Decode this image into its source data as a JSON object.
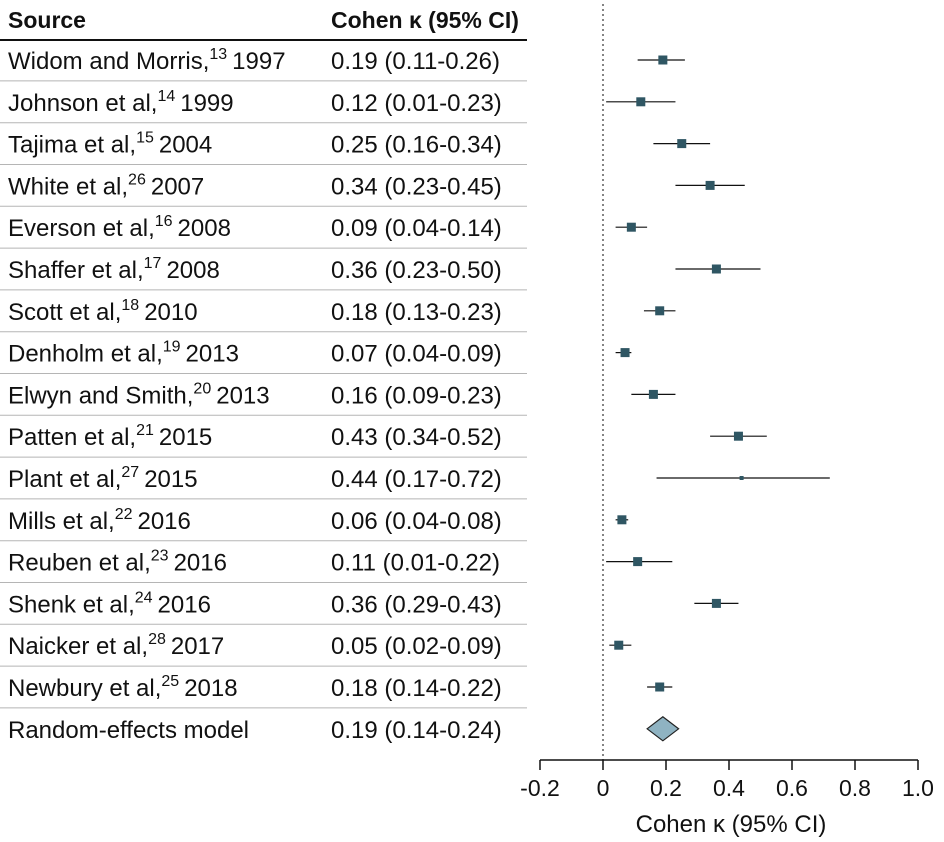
{
  "chart_data": {
    "type": "forest",
    "headers": {
      "source": "Source",
      "estimate": "Cohen κ (95% CI)"
    },
    "xlabel": "Cohen κ (95% CI)",
    "xlim": [
      -0.2,
      1.0
    ],
    "xticks": [
      "-0.2",
      "0",
      "0.2",
      "0.4",
      "0.6",
      "0.8",
      "1.0"
    ],
    "xtick_values": [
      -0.2,
      0,
      0.2,
      0.4,
      0.6,
      0.8,
      1.0
    ],
    "reference_line": 0,
    "marker_color": "#2f5663",
    "summary_fill": "#8fb3c2",
    "studies": [
      {
        "name": "Widom and Morris,",
        "ref": "13",
        "year": "1997",
        "estimate_text": "0.19 (0.11-0.26)",
        "value": 0.19,
        "low": 0.11,
        "high": 0.26
      },
      {
        "name": "Johnson et al,",
        "ref": "14",
        "year": "1999",
        "estimate_text": "0.12 (0.01-0.23)",
        "value": 0.12,
        "low": 0.01,
        "high": 0.23
      },
      {
        "name": "Tajima et al,",
        "ref": "15",
        "year": "2004",
        "estimate_text": "0.25 (0.16-0.34)",
        "value": 0.25,
        "low": 0.16,
        "high": 0.34
      },
      {
        "name": "White et al,",
        "ref": "26",
        "year": "2007",
        "estimate_text": "0.34 (0.23-0.45)",
        "value": 0.34,
        "low": 0.23,
        "high": 0.45
      },
      {
        "name": "Everson et al,",
        "ref": "16",
        "year": "2008",
        "estimate_text": "0.09 (0.04-0.14)",
        "value": 0.09,
        "low": 0.04,
        "high": 0.14
      },
      {
        "name": "Shaffer et al,",
        "ref": "17",
        "year": "2008",
        "estimate_text": "0.36 (0.23-0.50)",
        "value": 0.36,
        "low": 0.23,
        "high": 0.5
      },
      {
        "name": "Scott et al,",
        "ref": "18",
        "year": "2010",
        "estimate_text": "0.18 (0.13-0.23)",
        "value": 0.18,
        "low": 0.13,
        "high": 0.23
      },
      {
        "name": "Denholm et al,",
        "ref": "19",
        "year": "2013",
        "estimate_text": "0.07 (0.04-0.09)",
        "value": 0.07,
        "low": 0.04,
        "high": 0.09
      },
      {
        "name": "Elwyn and Smith,",
        "ref": "20",
        "year": "2013",
        "estimate_text": "0.16 (0.09-0.23)",
        "value": 0.16,
        "low": 0.09,
        "high": 0.23
      },
      {
        "name": "Patten et al,",
        "ref": "21",
        "year": "2015",
        "estimate_text": "0.43 (0.34-0.52)",
        "value": 0.43,
        "low": 0.34,
        "high": 0.52
      },
      {
        "name": "Plant et al,",
        "ref": "27",
        "year": "2015",
        "estimate_text": "0.44 (0.17-0.72)",
        "value": 0.44,
        "low": 0.17,
        "high": 0.72
      },
      {
        "name": "Mills et al,",
        "ref": "22",
        "year": "2016",
        "estimate_text": "0.06 (0.04-0.08)",
        "value": 0.06,
        "low": 0.04,
        "high": 0.08
      },
      {
        "name": "Reuben et al,",
        "ref": "23",
        "year": "2016",
        "estimate_text": "0.11 (0.01-0.22)",
        "value": 0.11,
        "low": 0.01,
        "high": 0.22
      },
      {
        "name": "Shenk et al,",
        "ref": "24",
        "year": "2016",
        "estimate_text": "0.36 (0.29-0.43)",
        "value": 0.36,
        "low": 0.29,
        "high": 0.43
      },
      {
        "name": "Naicker et al,",
        "ref": "28",
        "year": "2017",
        "estimate_text": "0.05 (0.02-0.09)",
        "value": 0.05,
        "low": 0.02,
        "high": 0.09
      },
      {
        "name": "Newbury et al,",
        "ref": "25",
        "year": "2018",
        "estimate_text": "0.18 (0.14-0.22)",
        "value": 0.18,
        "low": 0.14,
        "high": 0.22
      }
    ],
    "summary": {
      "name": "Random-effects model",
      "estimate_text": "0.19 (0.14-0.24)",
      "value": 0.19,
      "low": 0.14,
      "high": 0.24
    }
  }
}
